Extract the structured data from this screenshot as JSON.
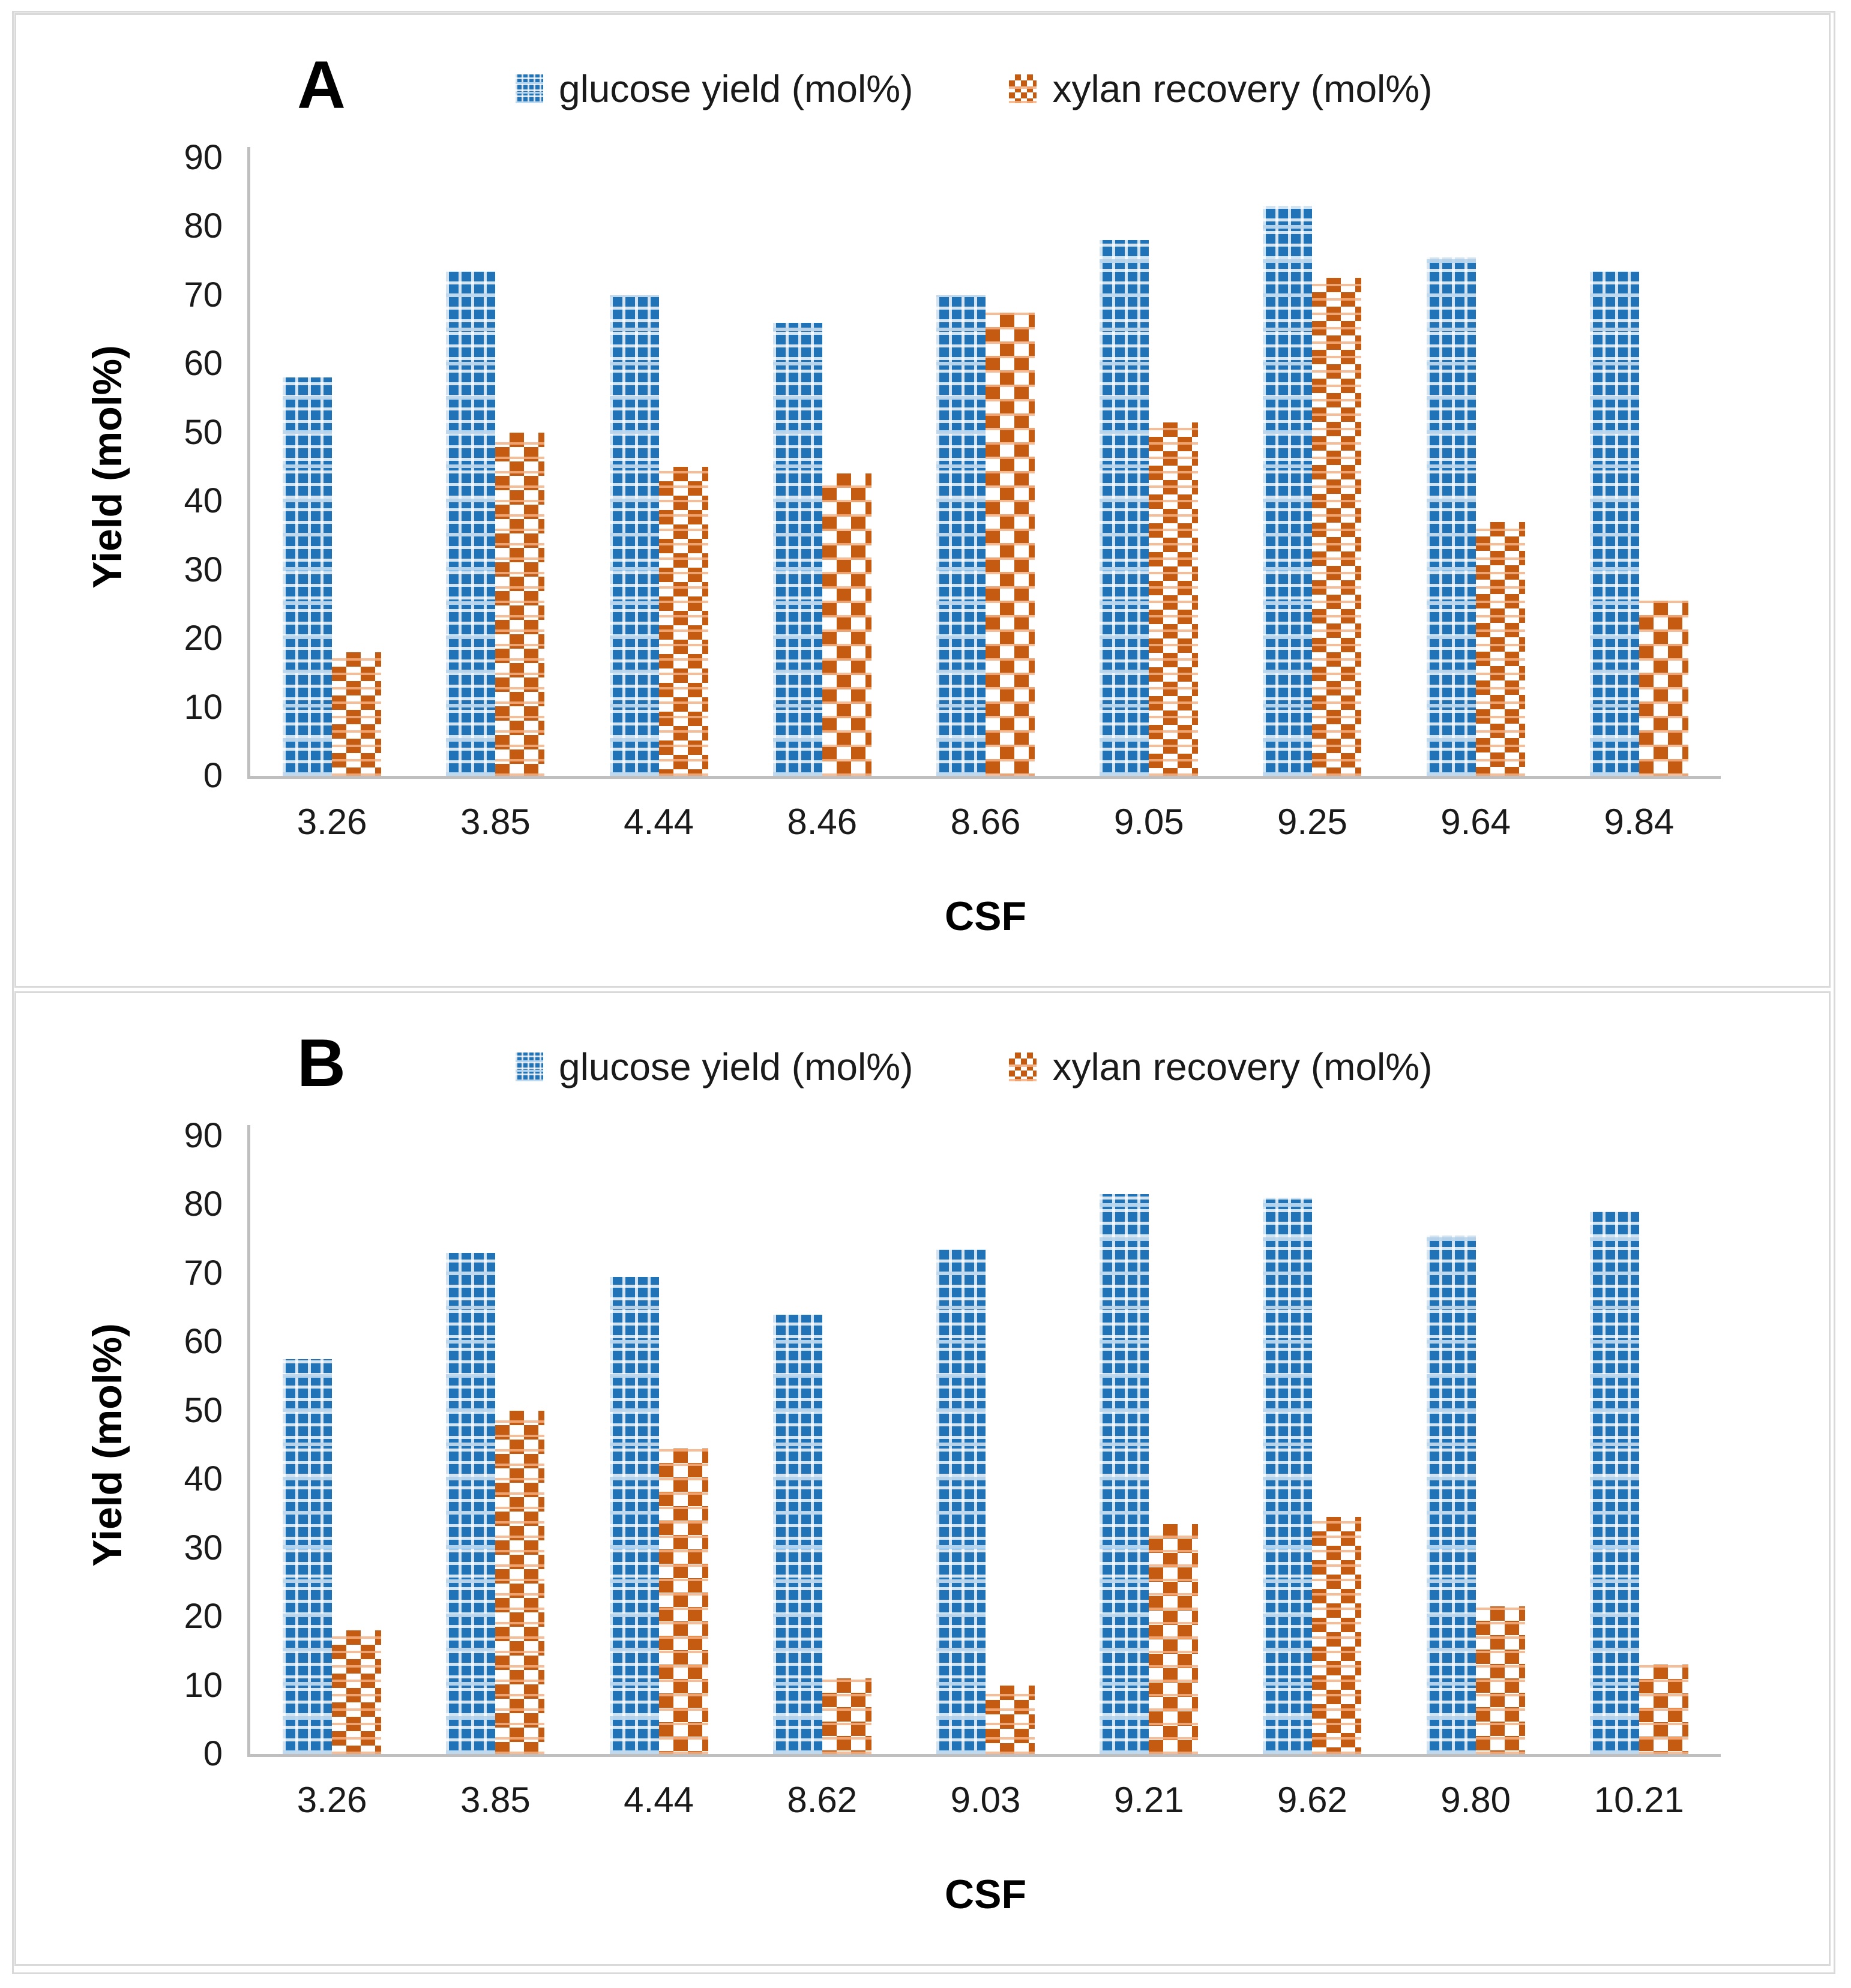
{
  "figure_title": "",
  "accent_colors": {
    "glucose_blue": "#2173B8",
    "glucose_light_blue": "#9DC3E6",
    "xylan_orange": "#C55A11",
    "xylan_light_orange": "#F4B183",
    "axis_gray": "#BFBFBF",
    "panel_border_gray": "#D9D9D9",
    "text_dark": "#1A1A1A"
  },
  "chart_data": [
    {
      "type": "bar",
      "panel_label": "A",
      "title": "",
      "categories": [
        "3.26",
        "3.85",
        "4.44",
        "8.46",
        "8.66",
        "9.05",
        "9.25",
        "9.64",
        "9.84"
      ],
      "series": [
        {
          "name": "glucose yield (mol%)",
          "color": "#2173B8",
          "pattern": "small-check-weave",
          "values": [
            58,
            73.5,
            70,
            66,
            70,
            78,
            83,
            75.5,
            73.5
          ]
        },
        {
          "name": "xylan recovery (mol%)",
          "color": "#C55A11",
          "pattern": "large-checkerboard",
          "values": [
            18,
            50,
            45,
            44,
            67.5,
            51.5,
            72.5,
            37,
            25.5
          ]
        }
      ],
      "xlabel": "CSF",
      "ylabel": "Yield (mol%)",
      "ylim": [
        0,
        90
      ],
      "ytick_step": 10,
      "grid": false,
      "legend_position": "top"
    },
    {
      "type": "bar",
      "panel_label": "B",
      "title": "",
      "categories": [
        "3.26",
        "3.85",
        "4.44",
        "8.62",
        "9.03",
        "9.21",
        "9.62",
        "9.80",
        "10.21"
      ],
      "series": [
        {
          "name": "glucose yield (mol%)",
          "color": "#2173B8",
          "pattern": "small-check-weave",
          "values": [
            57.5,
            73,
            69.5,
            64,
            73.5,
            81.5,
            81,
            75.5,
            79
          ]
        },
        {
          "name": "xylan recovery (mol%)",
          "color": "#C55A11",
          "pattern": "large-checkerboard",
          "values": [
            18,
            50,
            44.5,
            11,
            10,
            33.5,
            34.5,
            21.5,
            13
          ]
        }
      ],
      "xlabel": "CSF",
      "ylabel": "Yield (mol%)",
      "ylim": [
        0,
        90
      ],
      "ytick_step": 10,
      "grid": false,
      "legend_position": "top"
    }
  ]
}
